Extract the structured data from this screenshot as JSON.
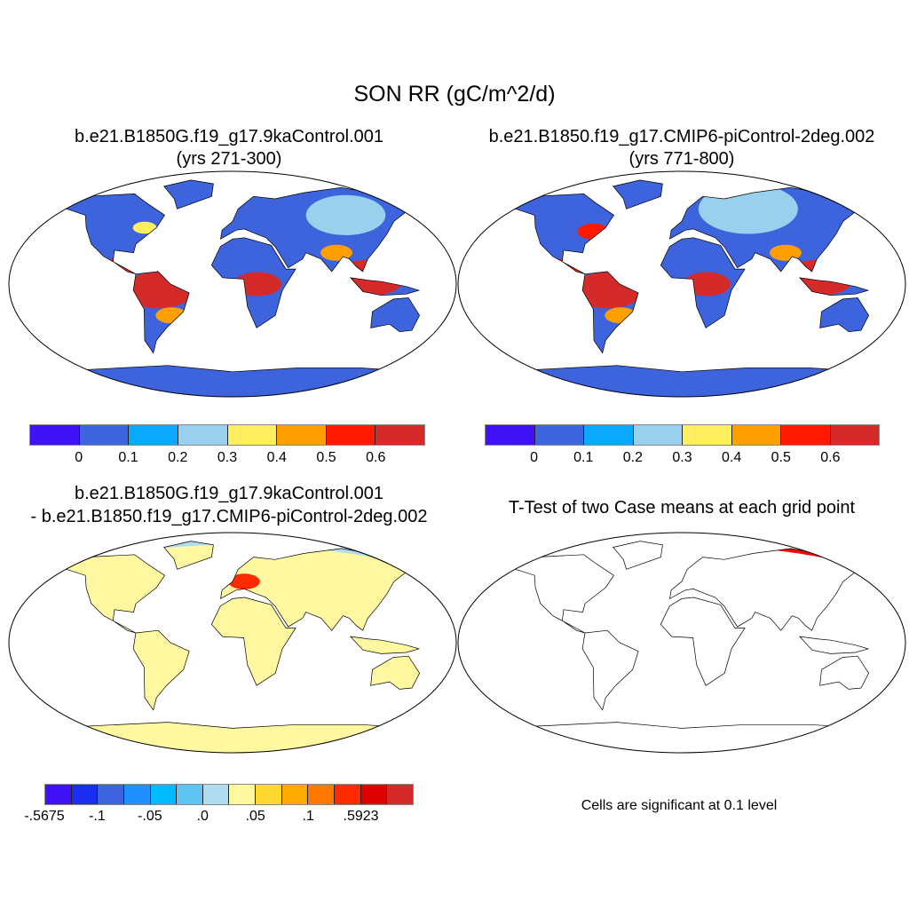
{
  "title": "SON RR (gC/m^2/d)",
  "panels": [
    {
      "title1": "b.e21.B1850G.f19_g17.9kaControl.001",
      "title2": "(yrs 271-300)",
      "land": "#3d63dd"
    },
    {
      "title1": "b.e21.B1850.f19_g17.CMIP6-piControl-2deg.002",
      "title2": "(yrs 771-800)",
      "land": "#3d63dd"
    },
    {
      "title1": "b.e21.B1850G.f19_g17.9kaControl.001",
      "title2": "- b.e21.B1850.f19_g17.CMIP6-piControl-2deg.002",
      "land": "#b0dcf0"
    },
    {
      "title1": "T-Test of two Case means at each grid point",
      "land": "#ff0000",
      "note": "Cells are significant at 0.1 level"
    }
  ],
  "colorbar_abs": {
    "colors": [
      "#3f12f5",
      "#3d63dd",
      "#0aa8ff",
      "#98d0ee",
      "#ffee60",
      "#ffa000",
      "#ff1a00",
      "#d42a2a"
    ],
    "labels": [
      "0",
      "0.1",
      "0.2",
      "0.3",
      "0.4",
      "0.5",
      "0.6"
    ]
  },
  "colorbar_diff": {
    "colors": [
      "#3f12f5",
      "#1a2ef0",
      "#3d63dd",
      "#1e90ff",
      "#00bbff",
      "#60c4f0",
      "#b0dcf0",
      "#fff8a0",
      "#ffd830",
      "#ffaa00",
      "#ff7800",
      "#ff2a00",
      "#e00000",
      "#d42a2a"
    ],
    "labels": [
      "-.5675",
      "-.1",
      "-.05",
      ".0",
      ".05",
      ".1",
      ".5923"
    ]
  }
}
